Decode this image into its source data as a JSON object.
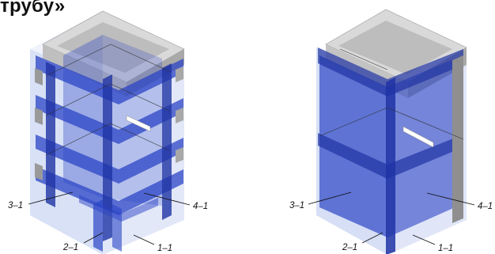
{
  "header": {
    "title_fragment": "трубу»"
  },
  "left_model": {
    "labels": {
      "l31": "3–1",
      "l41": "4–1",
      "l21": "2–1",
      "l11": "1–1"
    }
  },
  "right_model": {
    "labels": {
      "l31": "3–1",
      "l41": "4–1",
      "l21": "2–1",
      "l11": "1–1"
    }
  },
  "colors": {
    "concrete_top": "#d6d6d6",
    "concrete_side": "#a9a9a9",
    "glass": "#c8d4f2",
    "blue_band": "#2b44c6",
    "blue_dark": "#1f33a4"
  }
}
